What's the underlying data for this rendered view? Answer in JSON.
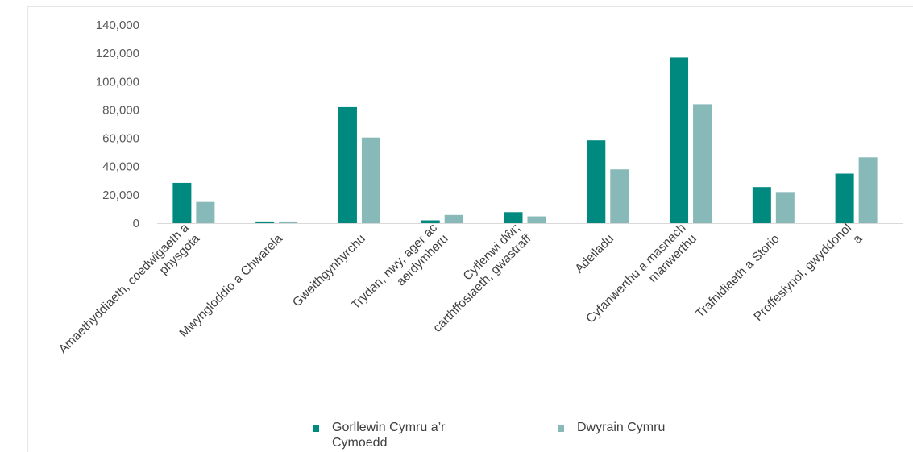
{
  "chart_data": {
    "type": "bar",
    "categories": [
      [
        "Amaethyddiaeth, coedwigaeth a",
        "physgota"
      ],
      [
        "Mwyngloddio a Chwarela"
      ],
      [
        "Gweithgynhyrchu"
      ],
      [
        "Trydan, nwy, ager ac",
        "aerdymheru"
      ],
      [
        "Cyflenwi dŵr;",
        "carthffosiaeth, gwastraff"
      ],
      [
        "Adeiladu"
      ],
      [
        "Cyfanwerthu a masnach",
        "manwerthu"
      ],
      [
        "Trafnidiaeth a Storio"
      ],
      [
        "Proffesiynol, gwyddonol",
        "a"
      ]
    ],
    "series": [
      {
        "name": "Gorllewin Cymru a’r Cymoedd",
        "color": "#00897f",
        "values": [
          28500,
          1200,
          82000,
          2000,
          7800,
          58500,
          117000,
          25500,
          35000
        ]
      },
      {
        "name": "Dwyrain Cymru",
        "color": "#86b9b7",
        "values": [
          15000,
          1200,
          60500,
          5800,
          4800,
          38000,
          84000,
          22000,
          46500
        ]
      }
    ],
    "yticks": [
      "0",
      "20,000",
      "40,000",
      "60,000",
      "80,000",
      "100,000",
      "120,000",
      "140,000"
    ],
    "ylim": [
      0,
      140000
    ],
    "title": "",
    "xlabel": "",
    "ylabel": "",
    "grid": false,
    "legend_position": "bottom"
  },
  "legend": {
    "series1_line1": "Gorllewin Cymru a’r",
    "series1_line2": "Cymoedd",
    "series2": "Dwyrain Cymru"
  }
}
